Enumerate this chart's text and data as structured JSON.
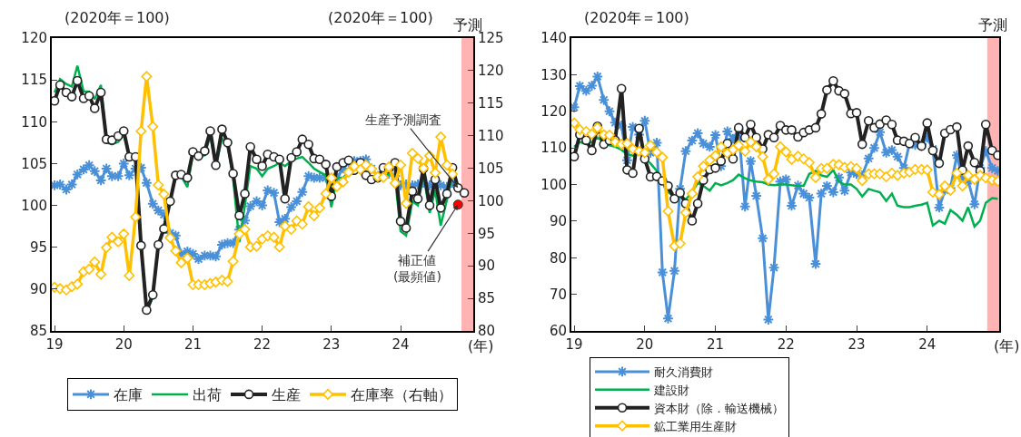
{
  "chart_data": [
    {
      "type": "line",
      "ylabel": "(2020年＝100)",
      "y2label": "(2020年＝100)",
      "xlabel": "(年)",
      "legend": "bottom",
      "x": [
        19,
        19.08,
        19.17,
        19.25,
        19.33,
        19.42,
        19.5,
        19.58,
        19.67,
        19.75,
        19.83,
        19.92,
        20,
        20.08,
        20.17,
        20.25,
        20.33,
        20.42,
        20.5,
        20.58,
        20.67,
        20.75,
        20.83,
        20.92,
        21,
        21.08,
        21.17,
        21.25,
        21.33,
        21.42,
        21.5,
        21.58,
        21.67,
        21.75,
        21.83,
        21.92,
        22,
        22.08,
        22.17,
        22.25,
        22.33,
        22.42,
        22.5,
        22.58,
        22.67,
        22.75,
        22.83,
        22.92,
        23,
        23.08,
        23.17,
        23.25,
        23.33,
        23.42,
        23.5,
        23.58,
        23.67,
        23.75,
        23.83,
        23.92,
        24,
        24.08,
        24.17,
        24.25,
        24.33,
        24.42,
        24.5,
        24.58,
        24.67,
        24.75,
        24.83,
        24.92
      ],
      "xlim": [
        18.96,
        25.05
      ],
      "xticks": [
        19,
        20,
        21,
        22,
        23,
        24
      ],
      "ylim": [
        85,
        120
      ],
      "yticks": [
        85,
        90,
        95,
        100,
        105,
        110,
        115,
        120
      ],
      "y2lim": [
        80,
        125
      ],
      "y2ticks": [
        80,
        85,
        90,
        95,
        100,
        105,
        110,
        115,
        120,
        125
      ],
      "series": [
        {
          "name": "在庫",
          "color": "#4a90d9",
          "marker": "cross",
          "values": [
            102.4,
            102.5,
            101.9,
            102.5,
            103.7,
            104.3,
            104.8,
            104.1,
            103.0,
            104.4,
            103.5,
            103.5,
            105.0,
            103.6,
            104.4,
            104.5,
            102.7,
            100.2,
            99.4,
            98.9,
            96.7,
            96.4,
            94.2,
            94.5,
            94.2,
            93.6,
            94.0,
            94.0,
            93.9,
            95.3,
            95.5,
            95.5,
            97.1,
            98.2,
            99.9,
            100.5,
            100.0,
            101.8,
            101.5,
            98.0,
            98.4,
            99.8,
            100.5,
            101.6,
            103.5,
            103.3,
            103.3,
            103.3,
            102.2,
            103.3,
            104.4,
            105.1,
            105.3,
            105.3,
            105.5,
            104.4,
            103.5,
            103.6,
            103.8,
            103.5,
            102.4,
            102.5,
            102.4,
            102.5,
            102.7,
            102.4,
            102.9,
            102.4,
            102.2,
            102.7,
            null,
            null
          ]
        },
        {
          "name": "出荷",
          "color": "#00b050",
          "marker": "none",
          "values": [
            113.5,
            115.1,
            114.5,
            114.2,
            116.7,
            113.6,
            113.6,
            112.7,
            114.4,
            107.5,
            107.3,
            107.6,
            108.4,
            106.0,
            105.8,
            95.3,
            87.1,
            89.1,
            95.3,
            97.5,
            100.7,
            103.3,
            103.5,
            102.2,
            106.2,
            105.8,
            106.0,
            108.4,
            104.7,
            108.0,
            107.3,
            103.3,
            95.6,
            100.0,
            104.7,
            104.4,
            103.5,
            104.4,
            104.7,
            105.1,
            104.7,
            105.3,
            105.6,
            105.8,
            105.1,
            104.4,
            104.0,
            103.6,
            99.8,
            103.3,
            103.3,
            104.0,
            104.4,
            104.4,
            103.6,
            103.3,
            103.3,
            103.6,
            103.8,
            103.3,
            96.9,
            96.4,
            100.5,
            100.0,
            103.8,
            99.1,
            101.8,
            97.6,
            100.7,
            103.8,
            null,
            null
          ]
        },
        {
          "name": "生産",
          "color": "#222222",
          "marker": "circle",
          "values": [
            112.5,
            114.4,
            113.5,
            113.0,
            114.9,
            112.8,
            113.1,
            111.6,
            113.5,
            107.9,
            107.8,
            108.3,
            108.9,
            105.8,
            105.8,
            95.2,
            87.5,
            89.3,
            95.3,
            97.2,
            100.5,
            103.6,
            103.7,
            103.3,
            106.4,
            105.9,
            106.5,
            108.9,
            104.8,
            109.1,
            107.5,
            103.8,
            98.8,
            101.4,
            107.0,
            105.5,
            104.7,
            106.1,
            105.8,
            105.5,
            100.8,
            105.7,
            106.4,
            107.9,
            107.3,
            105.6,
            105.5,
            104.9,
            101.1,
            104.6,
            105.1,
            105.4,
            104.2,
            105.1,
            103.6,
            103.1,
            103.3,
            104.5,
            104.4,
            105.1,
            98.1,
            97.3,
            101.7,
            100.8,
            104.4,
            100.0,
            103.1,
            99.7,
            101.4,
            104.5,
            102.1,
            101.5
          ]
        },
        {
          "name": "在庫率（右軸）",
          "color": "#ffc000",
          "marker": "diamond",
          "axis": "y2",
          "values": [
            86.7,
            86.5,
            86.3,
            86.8,
            87.2,
            89.1,
            89.5,
            90.6,
            88.7,
            92.8,
            94.4,
            93.7,
            94.9,
            88.5,
            97.5,
            110.7,
            119.1,
            111.4,
            102.4,
            101.0,
            94.3,
            92.3,
            90.5,
            91.2,
            87.1,
            87.1,
            87.1,
            87.3,
            87.5,
            87.8,
            87.6,
            90.7,
            94.9,
            95.6,
            92.9,
            93.0,
            94.1,
            94.6,
            94.4,
            92.9,
            96.1,
            95.6,
            96.9,
            96.4,
            99.1,
            97.7,
            98.9,
            101.1,
            103.5,
            102.2,
            102.9,
            104.4,
            105.3,
            104.8,
            105.5,
            104.9,
            103.7,
            103.6,
            105.2,
            102.7,
            105.5,
            99.6,
            107.3,
            106.5,
            105.0,
            106.9,
            104.3,
            109.8,
            105.5,
            104.1,
            null,
            null
          ]
        },
        {
          "type": "scatter",
          "color": "#ff0000",
          "marker": "circle",
          "x": [
            24.83
          ],
          "values": [
            100.1
          ]
        }
      ],
      "bands": [
        {
          "axis": "x",
          "from": 24.88,
          "to": 25.05,
          "label": "予測",
          "color": "#ffb3b3"
        }
      ],
      "annotations": [
        {
          "text": "生産予測調査",
          "x": 24.83,
          "y": 102.1
        },
        {
          "text": "補正値\n(最頻値)",
          "x": 24.83,
          "y": 100.1
        }
      ]
    },
    {
      "type": "line",
      "ylabel": "(2020年＝100)",
      "xlabel": "(年)",
      "legend": "bottom",
      "x": [
        19,
        19.08,
        19.17,
        19.25,
        19.33,
        19.42,
        19.5,
        19.58,
        19.67,
        19.75,
        19.83,
        19.92,
        20,
        20.08,
        20.17,
        20.25,
        20.33,
        20.42,
        20.5,
        20.58,
        20.67,
        20.75,
        20.83,
        20.92,
        21,
        21.08,
        21.17,
        21.25,
        21.33,
        21.42,
        21.5,
        21.58,
        21.67,
        21.75,
        21.83,
        21.92,
        22,
        22.08,
        22.17,
        22.25,
        22.33,
        22.42,
        22.5,
        22.58,
        22.67,
        22.75,
        22.83,
        22.92,
        23,
        23.08,
        23.17,
        23.25,
        23.33,
        23.42,
        23.5,
        23.58,
        23.67,
        23.75,
        23.83,
        23.92,
        24,
        24.08,
        24.17,
        24.25,
        24.33,
        24.42,
        24.5,
        24.58,
        24.67,
        24.75,
        24.83,
        24.92,
        25
      ],
      "xlim": [
        18.96,
        25.02
      ],
      "xticks": [
        19,
        20,
        21,
        22,
        23,
        24
      ],
      "ylim": [
        60,
        140
      ],
      "yticks": [
        60,
        70,
        80,
        90,
        100,
        110,
        120,
        130,
        140
      ],
      "series": [
        {
          "name": "耐久消費財",
          "color": "#4a90d9",
          "marker": "cross",
          "values": [
            121.1,
            126.9,
            125.6,
            127.0,
            129.5,
            123.1,
            120.0,
            116.9,
            116.1,
            106.6,
            115.7,
            113.6,
            117.4,
            108.7,
            111.4,
            76.0,
            63.4,
            76.4,
            98.8,
            109.1,
            112.0,
            114.0,
            111.2,
            110.3,
            113.5,
            105.0,
            114.5,
            112.5,
            115.0,
            94.0,
            106.4,
            96.9,
            85.3,
            63.1,
            77.3,
            100.8,
            101.4,
            94.2,
            99.7,
            97.5,
            96.4,
            78.3,
            97.5,
            99.6,
            97.9,
            101.9,
            98.3,
            103.3,
            102.9,
            102.5,
            107.1,
            110.0,
            114.3,
            108.7,
            109.4,
            107.6,
            104.5,
            111.2,
            110.8,
            111.0,
            112.8,
            109.7,
            93.7,
            98.4,
            99.0,
            108.0,
            101.7,
            101.0,
            94.6,
            104.5,
            109.1,
            104.5,
            103.7
          ]
        },
        {
          "name": "建設財",
          "color": "#00b050",
          "marker": "none",
          "values": [
            110.3,
            111.6,
            111.0,
            111.6,
            112.8,
            111.6,
            110.7,
            110.3,
            109.5,
            108.3,
            107.9,
            108.7,
            107.0,
            105.8,
            103.7,
            101.2,
            97.9,
            96.7,
            96.7,
            95.9,
            97.9,
            100.4,
            99.6,
            98.3,
            100.4,
            99.8,
            100.4,
            101.2,
            102.7,
            101.7,
            101.1,
            100.8,
            100.6,
            100.0,
            99.8,
            100.0,
            100.0,
            99.8,
            99.6,
            99.6,
            102.9,
            103.7,
            102.5,
            102.1,
            103.9,
            100.8,
            100.0,
            100.0,
            98.8,
            96.7,
            98.8,
            98.3,
            97.9,
            95.5,
            97.5,
            94.2,
            93.8,
            93.8,
            94.2,
            94.5,
            95.0,
            88.8,
            90.1,
            89.3,
            93.0,
            91.7,
            90.1,
            93.8,
            88.5,
            90.1,
            95.0,
            96.3,
            96.1
          ]
        },
        {
          "name": "資本財（除．輸送機械）",
          "color": "#222222",
          "marker": "circle",
          "values": [
            107.6,
            113.6,
            112.1,
            109.3,
            115.9,
            111.0,
            112.0,
            112.1,
            126.2,
            104.0,
            103.1,
            115.3,
            107.0,
            102.1,
            102.2,
            101.0,
            99.6,
            96.1,
            97.7,
            94.8,
            90.1,
            94.8,
            101.2,
            104.1,
            104.5,
            106.4,
            111.2,
            107.0,
            115.5,
            112.8,
            116.4,
            112.8,
            109.7,
            113.6,
            112.8,
            116.1,
            114.9,
            114.9,
            113.0,
            114.2,
            114.9,
            115.5,
            119.3,
            125.8,
            128.3,
            125.6,
            124.8,
            119.4,
            119.6,
            111.0,
            117.4,
            115.5,
            116.5,
            117.6,
            116.4,
            112.1,
            111.8,
            111.2,
            112.8,
            110.5,
            116.8,
            109.3,
            105.8,
            114.0,
            115.0,
            115.7,
            103.9,
            110.5,
            106.0,
            103.7,
            116.4,
            109.3,
            108.0
          ]
        },
        {
          "name": "鉱工業用生産財",
          "color": "#ffc000",
          "marker": "diamond",
          "values": [
            116.8,
            115.0,
            114.5,
            113.8,
            115.5,
            113.6,
            113.5,
            111.6,
            111.0,
            111.2,
            109.7,
            109.1,
            108.7,
            110.7,
            108.8,
            107.4,
            92.7,
            83.2,
            83.9,
            92.3,
            97.5,
            102.1,
            105.0,
            106.6,
            107.9,
            110.3,
            108.6,
            109.5,
            110.7,
            109.1,
            111.6,
            110.3,
            107.6,
            101.4,
            102.9,
            110.3,
            108.9,
            106.9,
            107.7,
            107.0,
            106.0,
            101.9,
            104.4,
            104.4,
            105.5,
            105.4,
            104.7,
            104.9,
            104.4,
            101.1,
            102.9,
            102.9,
            102.9,
            102.1,
            103.1,
            102.5,
            103.1,
            103.4,
            104.1,
            104.1,
            104.0,
            97.9,
            97.3,
            99.6,
            98.4,
            103.1,
            99.6,
            102.5,
            101.4,
            102.5,
            101.8,
            101.2,
            100.9
          ]
        }
      ],
      "bands": [
        {
          "axis": "x",
          "from": 24.85,
          "to": 25.02,
          "label": "予測",
          "color": "#ffb3b3"
        }
      ]
    }
  ]
}
